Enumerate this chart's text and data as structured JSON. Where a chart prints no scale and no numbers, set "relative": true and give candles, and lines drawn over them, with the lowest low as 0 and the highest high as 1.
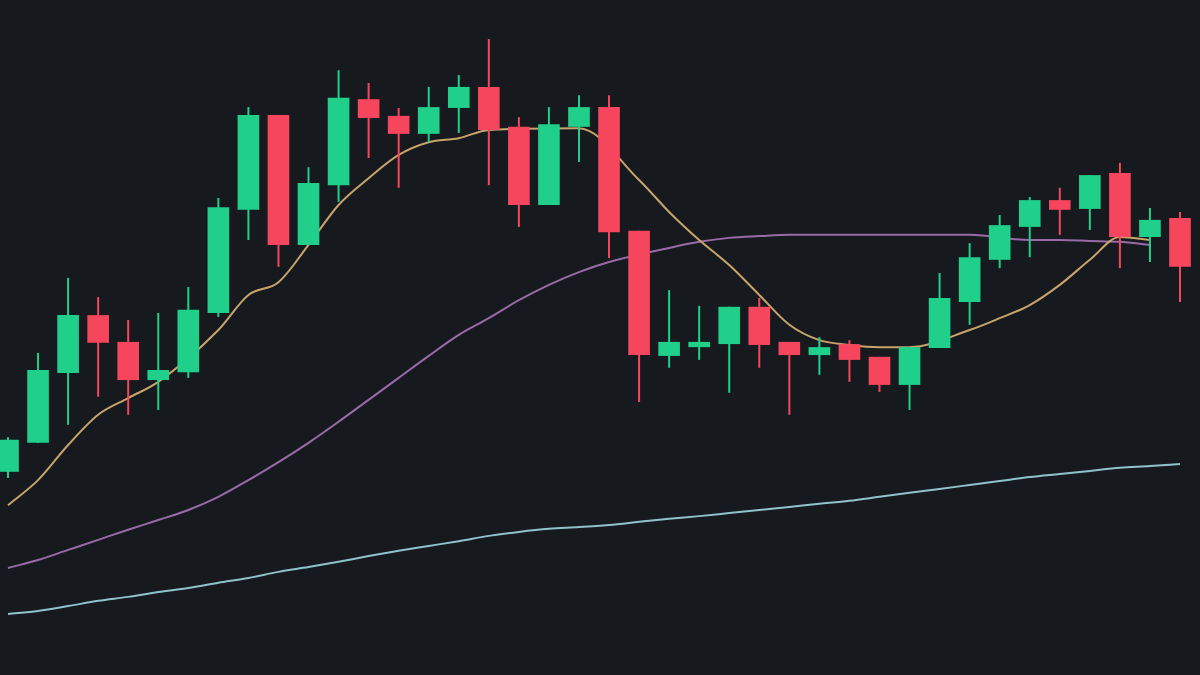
{
  "chart_data": {
    "type": "candlestick",
    "relative": true,
    "marker": "none",
    "categories": [
      null,
      null,
      null,
      null,
      null,
      null,
      null,
      null,
      null,
      null,
      null,
      null,
      null,
      null,
      null,
      null,
      null,
      null,
      null,
      null,
      null,
      null,
      null,
      null,
      null,
      null,
      null,
      null,
      null,
      null,
      null,
      null,
      null,
      null,
      null,
      null,
      null,
      null,
      null,
      null
    ],
    "ohlc": [
      [
        0.014,
        0.093,
        0,
        0.087
      ],
      [
        0.08,
        0.285,
        0.08,
        0.246
      ],
      [
        0.239,
        0.456,
        0.121,
        0.371
      ],
      [
        0.371,
        0.412,
        0.185,
        0.308
      ],
      [
        0.31,
        0.36,
        0.144,
        0.223
      ],
      [
        0.223,
        0.376,
        0.155,
        0.246
      ],
      [
        0.241,
        0.435,
        0.228,
        0.383
      ],
      [
        0.376,
        0.638,
        0.367,
        0.617
      ],
      [
        0.611,
        0.845,
        0.542,
        0.827
      ],
      [
        0.827,
        0.827,
        0.481,
        0.531
      ],
      [
        0.531,
        0.708,
        0.531,
        0.672
      ],
      [
        0.667,
        0.929,
        0.629,
        0.866
      ],
      [
        0.863,
        0.9,
        0.729,
        0.82
      ],
      [
        0.825,
        0.843,
        0.661,
        0.784
      ],
      [
        0.784,
        0.891,
        0.765,
        0.845
      ],
      [
        0.843,
        0.918,
        0.786,
        0.891
      ],
      [
        0.891,
        1,
        0.667,
        0.793
      ],
      [
        0.8,
        0.822,
        0.572,
        0.622
      ],
      [
        0.622,
        0.845,
        0.622,
        0.806
      ],
      [
        0.8,
        0.872,
        0.72,
        0.845
      ],
      [
        0.845,
        0.872,
        0.501,
        0.56
      ],
      [
        0.563,
        0.563,
        0.173,
        0.28
      ],
      [
        0.278,
        0.428,
        0.251,
        0.31
      ],
      [
        0.298,
        0.392,
        0.269,
        0.31
      ],
      [
        0.305,
        0.39,
        0.194,
        0.39
      ],
      [
        0.39,
        0.41,
        0.251,
        0.303
      ],
      [
        0.31,
        0.31,
        0.144,
        0.28
      ],
      [
        0.28,
        0.321,
        0.235,
        0.298
      ],
      [
        0.305,
        0.314,
        0.219,
        0.269
      ],
      [
        0.276,
        0.276,
        0.196,
        0.212
      ],
      [
        0.212,
        0.298,
        0.155,
        0.298
      ],
      [
        0.296,
        0.467,
        0.296,
        0.41
      ],
      [
        0.401,
        0.535,
        0.349,
        0.503
      ],
      [
        0.497,
        0.599,
        0.478,
        0.576
      ],
      [
        0.572,
        0.64,
        0.503,
        0.633
      ],
      [
        0.633,
        0.661,
        0.554,
        0.611
      ],
      [
        0.613,
        0.69,
        0.565,
        0.69
      ],
      [
        0.695,
        0.718,
        0.478,
        0.549
      ],
      [
        0.549,
        0.615,
        0.492,
        0.588
      ],
      [
        0.592,
        0.606,
        0.401,
        0.481
      ]
    ],
    "colors": [
      "#1fcf8a",
      "#1fcf8a",
      "#1fcf8a",
      "#f6465d",
      "#f6465d",
      "#1fcf8a",
      "#1fcf8a",
      "#1fcf8a",
      "#1fcf8a",
      "#f6465d",
      "#1fcf8a",
      "#1fcf8a",
      "#f6465d",
      "#f6465d",
      "#1fcf8a",
      "#1fcf8a",
      "#f6465d",
      "#f6465d",
      "#1fcf8a",
      "#1fcf8a",
      "#f6465d",
      "#f6465d",
      "#1fcf8a",
      "#1fcf8a",
      "#1fcf8a",
      "#f6465d",
      "#f6465d",
      "#1fcf8a",
      "#f6465d",
      "#f6465d",
      "#1fcf8a",
      "#1fcf8a",
      "#1fcf8a",
      "#1fcf8a",
      "#1fcf8a",
      "#f6465d",
      "#1fcf8a",
      "#f6465d",
      "#1fcf8a",
      "#f6465d"
    ],
    "series": [
      {
        "type": "line",
        "color": "#c9a46a",
        "values": [
          -0.062,
          -0.005,
          0.075,
          0.144,
          0.182,
          0.219,
          null,
          0.337,
          0.417,
          0.446,
          0.531,
          0.622,
          0.683,
          0.736,
          0.765,
          0.774,
          0.793,
          null,
          null,
          0.797,
          null,
          0.679,
          0.606,
          0.542,
          0.485,
          0.417,
          0.349,
          0.314,
          0.303,
          0.298,
          0.298,
          null,
          0.337,
          0.364,
          0.394,
          0.44,
          0.497,
          0.549,
          0.542,
          null
        ]
      },
      {
        "type": "line",
        "color": "#9a6aa8",
        "values": [
          -0.205,
          -0.187,
          -0.164,
          -0.141,
          -0.118,
          -0.096,
          -0.073,
          -0.043,
          -0.005,
          0.036,
          0.08,
          0.128,
          0.178,
          0.228,
          0.278,
          0.326,
          0.364,
          0.405,
          0.44,
          0.469,
          0.492,
          null,
          0.524,
          0.538,
          0.547,
          0.551,
          0.554,
          0.554,
          0.554,
          0.554,
          0.554,
          0.554,
          0.554,
          null,
          0.542,
          0.542,
          0.54,
          0.538,
          0.531,
          null
        ]
      },
      {
        "type": "line",
        "color": "#8fc3c9",
        "values": [
          -0.31,
          -0.303,
          -0.292,
          -0.28,
          -0.271,
          -0.26,
          -0.251,
          -0.239,
          -0.228,
          -0.214,
          -0.203,
          -0.191,
          -0.178,
          -0.166,
          -0.155,
          -0.144,
          -0.132,
          -0.123,
          -0.116,
          -0.112,
          -0.107,
          -0.1,
          -0.093,
          -0.087,
          -0.08,
          -0.073,
          -0.066,
          -0.059,
          -0.052,
          -0.043,
          -0.034,
          -0.025,
          -0.016,
          -0.007,
          0.002,
          0.009,
          0.016,
          0.023,
          0.027,
          0.032
        ]
      }
    ]
  }
}
